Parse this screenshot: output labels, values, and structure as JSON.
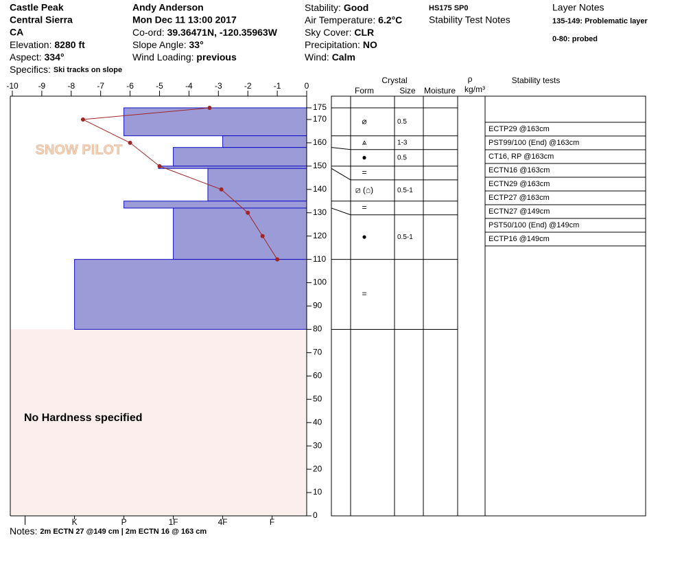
{
  "header": {
    "location": "Castle Peak",
    "range": "Central Sierra",
    "state": "CA",
    "fields1": [
      {
        "label": "Elevation:",
        "value": "8280 ft"
      },
      {
        "label": "Aspect:",
        "value": "334°"
      },
      {
        "label": "Specifics:",
        "value": "Ski tracks on slope"
      }
    ],
    "observer": "Andy Anderson",
    "datetime": "Mon Dec 11 13:00 2017",
    "fields2": [
      {
        "label": "Co-ord:",
        "value": "39.36471N, -120.35963W"
      },
      {
        "label": "Slope Angle:",
        "value": "33°"
      },
      {
        "label": "Wind Loading:",
        "value": "previous"
      }
    ],
    "fields3": [
      {
        "label": "Stability:",
        "value": "Good"
      },
      {
        "label": "Air Temperature:",
        "value": "6.2°C"
      },
      {
        "label": "Sky Cover:",
        "value": "CLR"
      },
      {
        "label": "Precipitation:",
        "value": "NO"
      },
      {
        "label": "Wind:",
        "value": "Calm"
      }
    ],
    "hs": "HS175 SP0",
    "stability_notes_title": "Stability Test Notes",
    "layer_notes_title": "Layer Notes",
    "layer_notes": [
      "135-149: Problematic layer",
      "0-80: probed"
    ]
  },
  "chart_data": {
    "type": "snowpit",
    "logo": "SNOW PILOT",
    "ylim": [
      0,
      180
    ],
    "yticks": [
      0,
      10,
      20,
      30,
      40,
      50,
      60,
      70,
      80,
      90,
      100,
      110,
      120,
      130,
      140,
      150,
      160,
      170,
      175
    ],
    "temperature": {
      "color": "#a02525",
      "xlim": [
        -10,
        0
      ],
      "xticks": [
        -10,
        -9,
        -8,
        -7,
        -6,
        -5,
        -4,
        -3,
        -2,
        -1,
        0
      ],
      "depths": [
        175,
        170,
        160,
        150,
        140,
        130,
        120,
        110
      ],
      "values": [
        -3.3,
        -7.6,
        -6.0,
        -5.0,
        -2.9,
        -2.0,
        -1.5,
        -1.0
      ]
    },
    "hardness": {
      "color": "#9b9bd8",
      "xlim": [
        0,
        6
      ],
      "xticks": [
        {
          "value": 5.7,
          "label": "I"
        },
        {
          "value": 4.7,
          "label": "K"
        },
        {
          "value": 3.7,
          "label": "P"
        },
        {
          "value": 2.7,
          "label": "1F"
        },
        {
          "value": 1.7,
          "label": "4F"
        },
        {
          "value": 0.7,
          "label": "F"
        }
      ]
    },
    "layers": [
      {
        "top": 175,
        "bottom": 163,
        "hardness": 3.7,
        "form": "⌀",
        "size": "0.5"
      },
      {
        "top": 163,
        "bottom": 158,
        "hardness": 1.7,
        "form": "⩓",
        "size": "1-3"
      },
      {
        "top": 158,
        "bottom": 150,
        "hardness": 2.7,
        "form": "●",
        "size": "0.5"
      },
      {
        "top": 150,
        "bottom": 149,
        "hardness": 3.0,
        "form": "="
      },
      {
        "top": 149,
        "bottom": 135,
        "hardness": 2.0,
        "form": "⧄ (⌂)",
        "size": "0.5-1"
      },
      {
        "top": 135,
        "bottom": 132,
        "hardness": 3.7,
        "form": "="
      },
      {
        "top": 132,
        "bottom": 110,
        "hardness": 2.7,
        "form": "●",
        "size": "0.5-1"
      },
      {
        "top": 110,
        "bottom": 80,
        "hardness": 4.7,
        "form": "="
      }
    ],
    "no_hardness_label": "No Hardness specified",
    "table": {
      "crystal": "Crystal",
      "form": "Form",
      "size": "Size",
      "moisture": "Moisture",
      "rho": "ρ",
      "density": "kg/m³",
      "tests": "Stability tests"
    },
    "stability_tests": [
      "ECTP29 @163cm",
      "PST99/100 (End) @163cm",
      "CT16, RP @163cm",
      "ECTN16 @163cm",
      "ECTN29 @163cm",
      "ECTP27 @163cm",
      "ECTN27 @149cm",
      "PST50/100 (End) @149cm",
      "ECTP16 @149cm"
    ],
    "notes_label": "Notes:",
    "notes": "2m ECTN 27 @149 cm | 2m ECTN 16 @ 163 cm"
  }
}
